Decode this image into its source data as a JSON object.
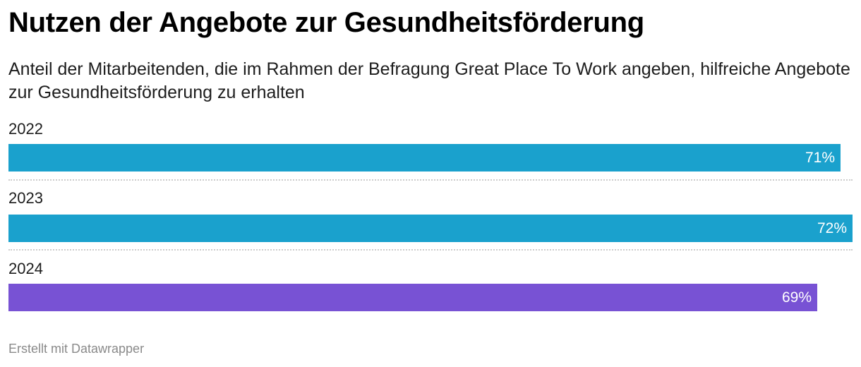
{
  "title": "Nutzen der Angebote zur Gesundheitsförderung",
  "subtitle": "Anteil der Mitarbeitenden, die im Rahmen der Befragung Great Place To Work angeben, hilfreiche Angebote zur Gesundheitsförderung zu erhalten",
  "footer": "Erstellt mit Datawrapper",
  "rows": [
    {
      "label": "2022",
      "value": 71,
      "value_label": "71%",
      "color": "#1aa1cd"
    },
    {
      "label": "2023",
      "value": 72,
      "value_label": "72%",
      "color": "#1aa1cd"
    },
    {
      "label": "2024",
      "value": 69,
      "value_label": "69%",
      "color": "#7852d4"
    }
  ],
  "chart_data": {
    "type": "bar",
    "orientation": "horizontal",
    "title": "Nutzen der Angebote zur Gesundheitsförderung",
    "subtitle": "Anteil der Mitarbeitenden, die im Rahmen der Befragung Great Place To Work angeben, hilfreiche Angebote zur Gesundheitsförderung zu erhalten",
    "categories": [
      "2022",
      "2023",
      "2024"
    ],
    "values": [
      71,
      72,
      69
    ],
    "unit": "%",
    "colors": [
      "#1aa1cd",
      "#1aa1cd",
      "#7852d4"
    ],
    "xlabel": "",
    "ylabel": "",
    "xlim": [
      0,
      72
    ],
    "grid": false,
    "legend": "none",
    "source_note": "Erstellt mit Datawrapper"
  }
}
